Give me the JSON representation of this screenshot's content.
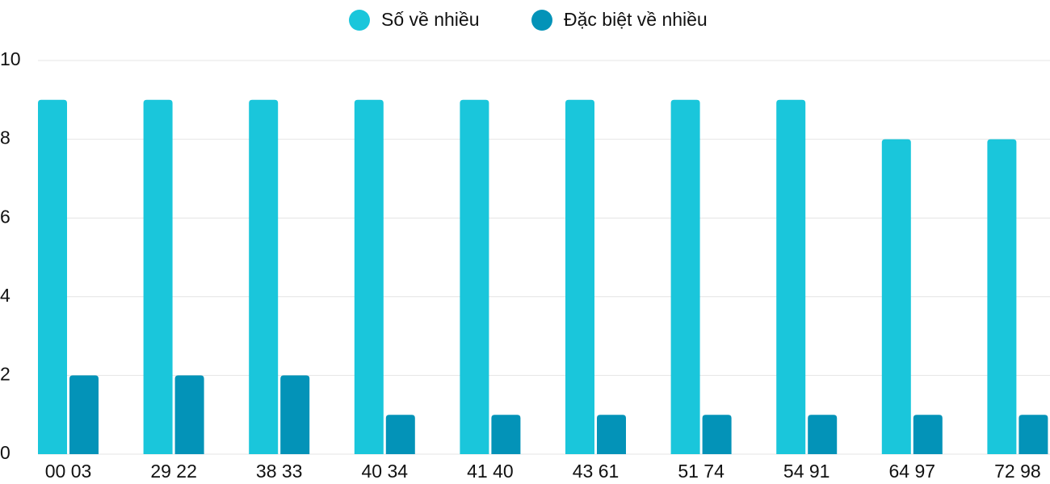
{
  "chart_data": {
    "type": "bar",
    "categories": [
      "00 03",
      "29 22",
      "38 33",
      "40 34",
      "41 40",
      "43 61",
      "51 74",
      "54 91",
      "64 97",
      "72 98"
    ],
    "series": [
      {
        "name": "Số về nhiều",
        "color": "#1ac6db",
        "values": [
          9,
          9,
          9,
          9,
          9,
          9,
          9,
          9,
          8,
          8
        ]
      },
      {
        "name": "Đặc biệt về nhiều",
        "color": "#0393b8",
        "values": [
          2,
          2,
          2,
          1,
          1,
          1,
          1,
          1,
          1,
          1
        ]
      }
    ],
    "ylim": [
      0,
      10
    ],
    "yticks": [
      0,
      2,
      4,
      6,
      8,
      10
    ],
    "grid": true,
    "legend": "top"
  }
}
